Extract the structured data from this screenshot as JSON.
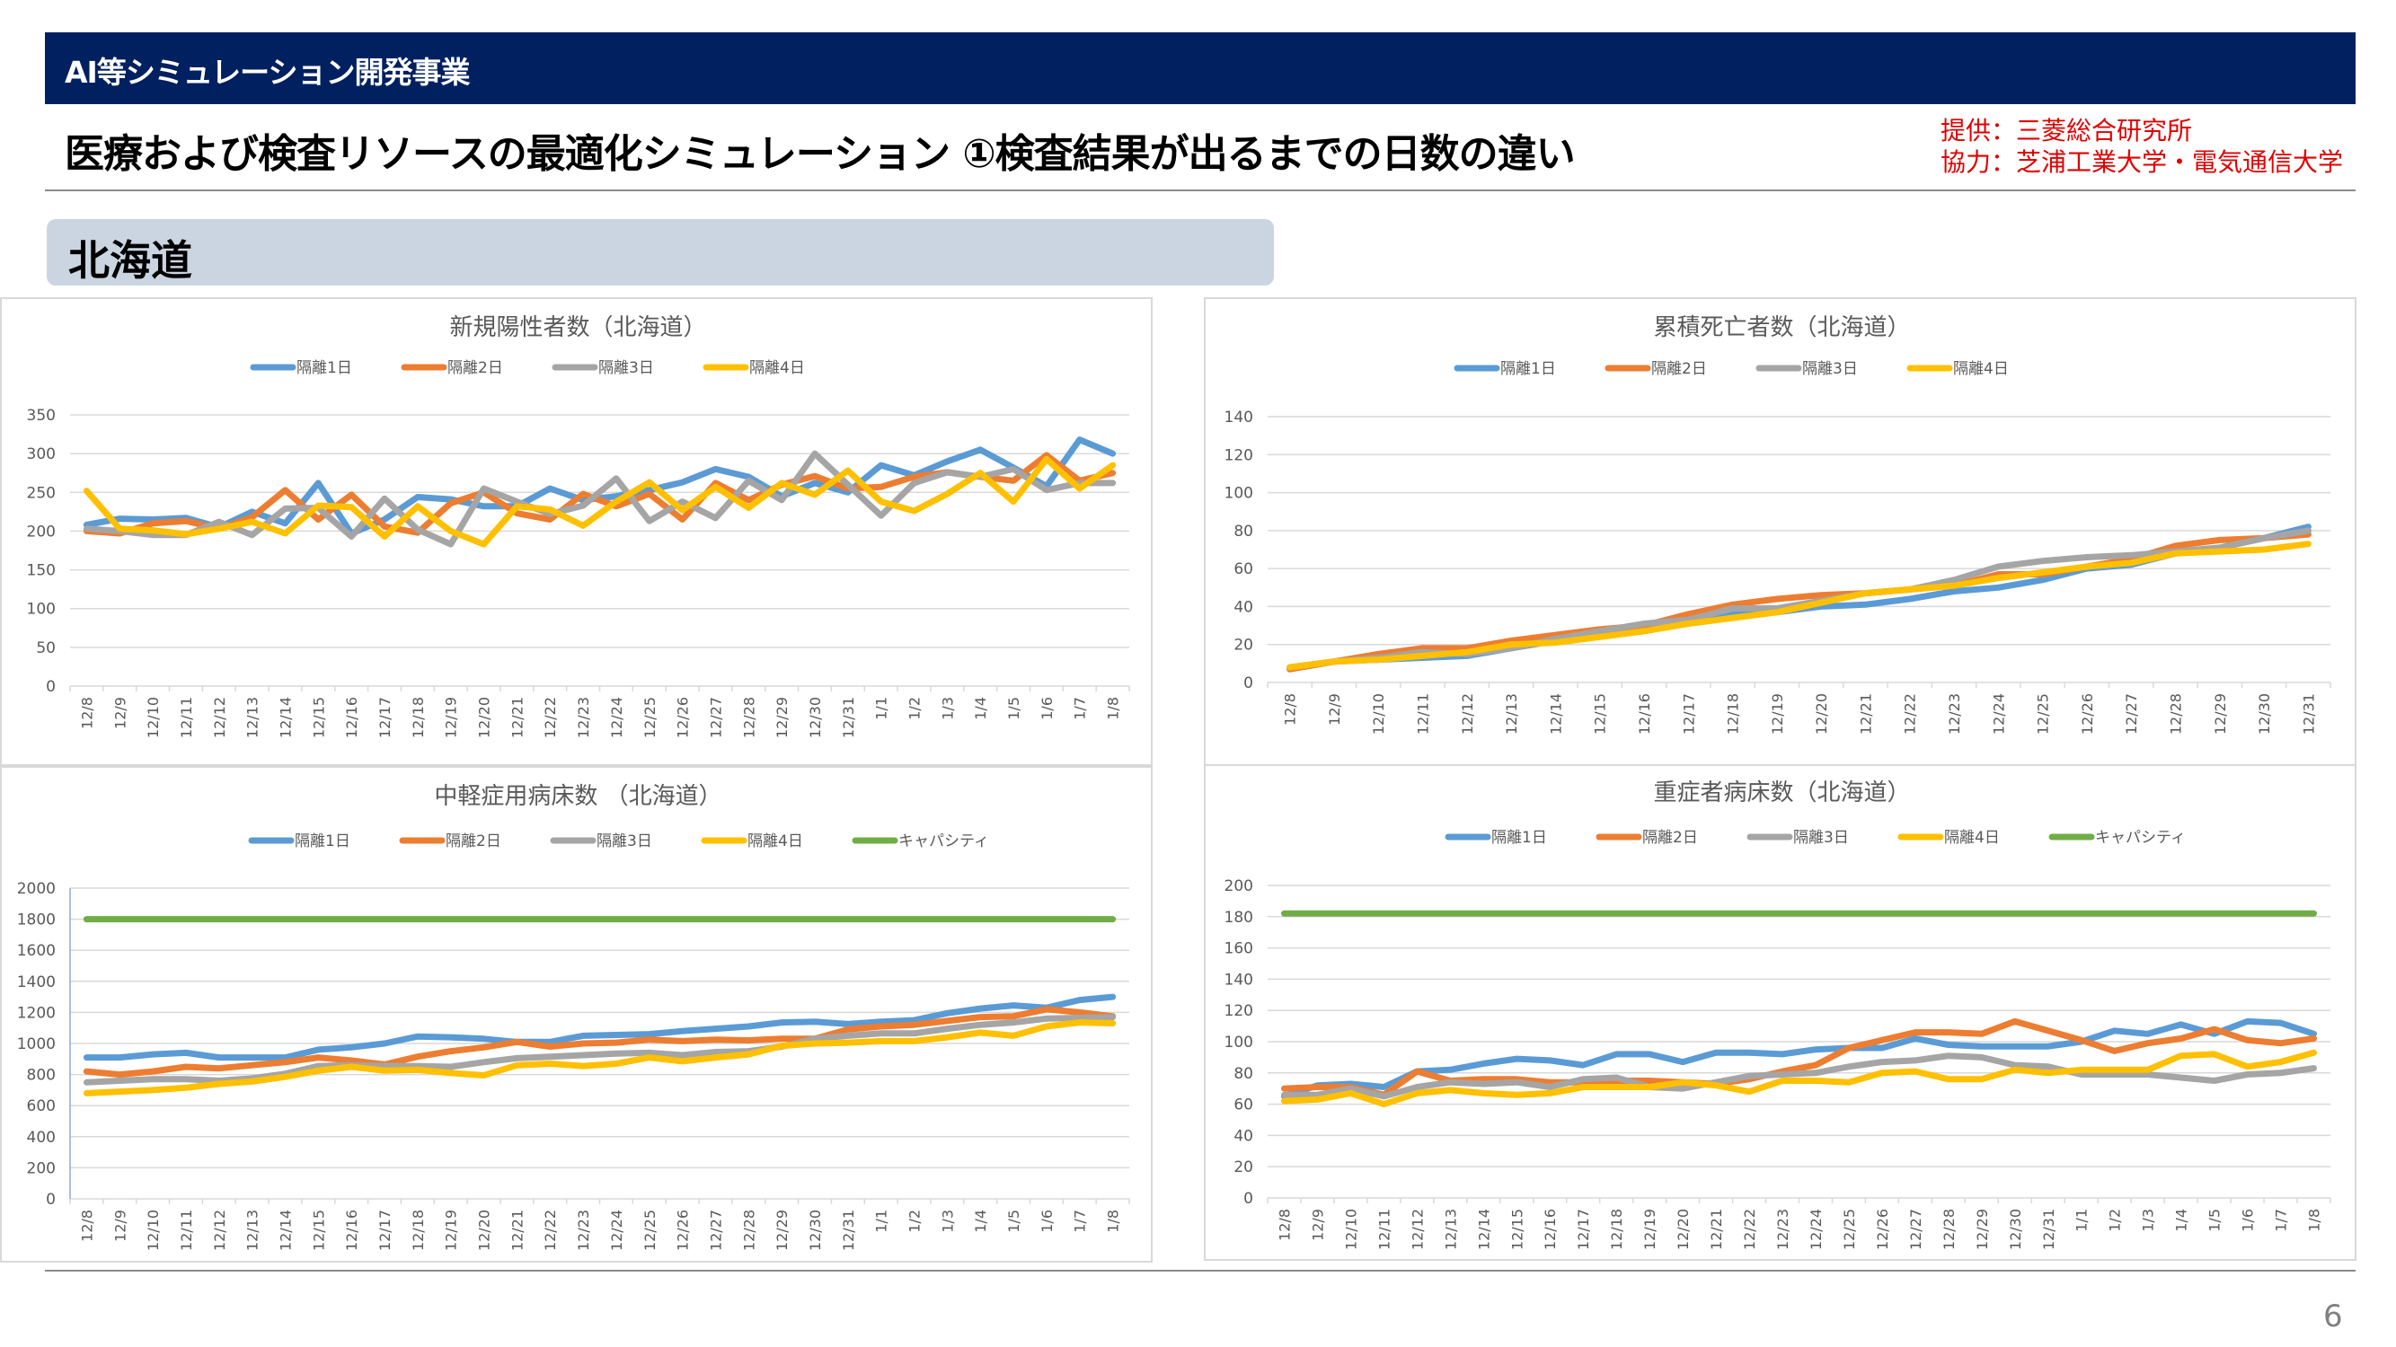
{
  "header": {
    "program": "AI等シミュレーション開発事業",
    "title": "医療および検査リソースの最適化シミュレーション ①検査結果が出るまでの日数の違い",
    "credit_provider": "提供：三菱総合研究所",
    "credit_cooperation": "協力：芝浦工業大学・電気通信大学"
  },
  "section": {
    "region": "北海道"
  },
  "footer": {
    "page_number": "6"
  },
  "colors": {
    "series_1": "#5b9bd5",
    "series_2": "#ed7d31",
    "series_3": "#a5a5a5",
    "series_4": "#ffc000",
    "capacity": "#70ad47",
    "header_bg": "#002060",
    "credit_text": "#e00000"
  },
  "chart_data": [
    {
      "id": "new-positives",
      "type": "line",
      "title": "新規陽性者数（北海道）",
      "xlabel": "",
      "ylabel": "",
      "ylim": [
        0,
        350
      ],
      "yticks": [
        0,
        50,
        100,
        150,
        200,
        250,
        300,
        350
      ],
      "grid": true,
      "legend": "top",
      "categories": [
        "12/8",
        "12/9",
        "12/10",
        "12/11",
        "12/12",
        "12/13",
        "12/14",
        "12/15",
        "12/16",
        "12/17",
        "12/18",
        "12/19",
        "12/20",
        "12/21",
        "12/22",
        "12/23",
        "12/24",
        "12/25",
        "12/26",
        "12/27",
        "12/28",
        "12/29",
        "12/30",
        "12/31",
        "1/1",
        "1/2",
        "1/3",
        "1/4",
        "1/5",
        "1/6",
        "1/7",
        "1/8"
      ],
      "series": [
        {
          "name": "隔離1日",
          "color": "#5b9bd5",
          "values": [
            208,
            216,
            215,
            217,
            205,
            225,
            210,
            262,
            197,
            215,
            244,
            241,
            232,
            232,
            255,
            240,
            245,
            253,
            263,
            280,
            270,
            245,
            262,
            250,
            285,
            272,
            290,
            305,
            282,
            258,
            318,
            300
          ]
        },
        {
          "name": "隔離2日",
          "color": "#ed7d31",
          "values": [
            200,
            197,
            210,
            213,
            203,
            218,
            253,
            215,
            247,
            206,
            198,
            236,
            250,
            223,
            215,
            248,
            232,
            248,
            215,
            262,
            240,
            260,
            271,
            255,
            257,
            270,
            276,
            270,
            265,
            298,
            265,
            275
          ]
        },
        {
          "name": "隔離3日",
          "color": "#a5a5a5",
          "values": [
            203,
            200,
            195,
            195,
            212,
            195,
            229,
            230,
            193,
            242,
            202,
            183,
            255,
            238,
            222,
            233,
            268,
            213,
            238,
            217,
            265,
            240,
            300,
            260,
            220,
            262,
            276,
            270,
            280,
            253,
            262,
            262
          ]
        },
        {
          "name": "隔離4日",
          "color": "#ffc000",
          "values": [
            252,
            203,
            201,
            196,
            203,
            212,
            197,
            233,
            231,
            193,
            232,
            200,
            183,
            232,
            228,
            207,
            238,
            263,
            227,
            257,
            230,
            262,
            247,
            278,
            238,
            226,
            248,
            275,
            238,
            293,
            255,
            285
          ]
        }
      ]
    },
    {
      "id": "cumulative-deaths",
      "type": "line",
      "title": "累積死亡者数（北海道）",
      "xlabel": "",
      "ylabel": "",
      "ylim": [
        0,
        140
      ],
      "yticks": [
        0,
        20,
        40,
        60,
        80,
        100,
        120,
        140
      ],
      "grid": true,
      "legend": "top",
      "categories": [
        "12/8",
        "12/9",
        "12/10",
        "12/11",
        "12/12",
        "12/13",
        "12/14",
        "12/15",
        "12/16",
        "12/17",
        "12/18",
        "12/19",
        "12/20",
        "12/21",
        "12/22",
        "12/23",
        "12/24",
        "12/25",
        "12/26",
        "12/27",
        "12/28",
        "12/29",
        "12/30",
        "12/31"
      ],
      "series": [
        {
          "name": "隔離1日",
          "color": "#5b9bd5",
          "values": [
            7,
            11,
            12,
            13,
            14,
            18,
            22,
            26,
            30,
            33,
            36,
            37,
            40,
            41,
            44,
            48,
            50,
            54,
            60,
            62,
            68,
            71,
            76,
            82
          ]
        },
        {
          "name": "隔離2日",
          "color": "#ed7d31",
          "values": [
            7,
            11,
            15,
            18,
            18,
            22,
            25,
            28,
            30,
            36,
            41,
            44,
            46,
            47,
            49,
            51,
            57,
            57,
            61,
            65,
            72,
            75,
            76,
            78
          ]
        },
        {
          "name": "隔離3日",
          "color": "#a5a5a5",
          "values": [
            8,
            11,
            13,
            16,
            15,
            18,
            23,
            27,
            31,
            33,
            39,
            39,
            43,
            47,
            49,
            54,
            61,
            64,
            66,
            67,
            69,
            71,
            76,
            80
          ]
        },
        {
          "name": "隔離4日",
          "color": "#ffc000",
          "values": [
            8,
            11,
            12,
            14,
            16,
            20,
            21,
            24,
            27,
            31,
            34,
            37,
            42,
            47,
            49,
            51,
            55,
            58,
            61,
            63,
            68,
            69,
            70,
            73
          ]
        }
      ]
    },
    {
      "id": "mild-beds",
      "type": "line",
      "title": "中軽症用病床数 （北海道）",
      "xlabel": "",
      "ylabel": "",
      "ylim": [
        0,
        2000
      ],
      "yticks": [
        0,
        200,
        400,
        600,
        800,
        1000,
        1200,
        1400,
        1600,
        1800,
        2000
      ],
      "grid": true,
      "legend": "top",
      "categories": [
        "12/8",
        "12/9",
        "12/10",
        "12/11",
        "12/12",
        "12/13",
        "12/14",
        "12/15",
        "12/16",
        "12/17",
        "12/18",
        "12/19",
        "12/20",
        "12/21",
        "12/22",
        "12/23",
        "12/24",
        "12/25",
        "12/26",
        "12/27",
        "12/28",
        "12/29",
        "12/30",
        "12/31",
        "1/1",
        "1/2",
        "1/3",
        "1/4",
        "1/5",
        "1/6",
        "1/7",
        "1/8"
      ],
      "series": [
        {
          "name": "隔離1日",
          "color": "#5b9bd5",
          "values": [
            910,
            910,
            930,
            940,
            910,
            910,
            910,
            960,
            975,
            1000,
            1045,
            1040,
            1030,
            1010,
            1010,
            1050,
            1055,
            1060,
            1080,
            1095,
            1110,
            1135,
            1140,
            1125,
            1140,
            1150,
            1195,
            1225,
            1245,
            1230,
            1280,
            1300
          ]
        },
        {
          "name": "隔離2日",
          "color": "#ed7d31",
          "values": [
            820,
            800,
            820,
            850,
            840,
            860,
            880,
            910,
            890,
            865,
            915,
            950,
            975,
            1010,
            980,
            1000,
            1005,
            1025,
            1015,
            1025,
            1020,
            1030,
            1030,
            1090,
            1110,
            1120,
            1145,
            1170,
            1175,
            1220,
            1200,
            1175
          ]
        },
        {
          "name": "隔離3日",
          "color": "#a5a5a5",
          "values": [
            750,
            760,
            770,
            770,
            760,
            775,
            805,
            855,
            860,
            855,
            855,
            850,
            880,
            905,
            915,
            925,
            935,
            940,
            925,
            945,
            950,
            980,
            1030,
            1050,
            1065,
            1065,
            1095,
            1120,
            1135,
            1160,
            1165,
            1170
          ]
        },
        {
          "name": "隔離4日",
          "color": "#ffc000",
          "values": [
            680,
            690,
            700,
            715,
            740,
            755,
            785,
            825,
            850,
            825,
            830,
            810,
            795,
            860,
            870,
            855,
            870,
            910,
            885,
            910,
            930,
            985,
            1000,
            1005,
            1015,
            1015,
            1040,
            1070,
            1050,
            1110,
            1135,
            1130
          ]
        },
        {
          "name": "キャパシティ",
          "color": "#70ad47",
          "values": [
            1800,
            1800,
            1800,
            1800,
            1800,
            1800,
            1800,
            1800,
            1800,
            1800,
            1800,
            1800,
            1800,
            1800,
            1800,
            1800,
            1800,
            1800,
            1800,
            1800,
            1800,
            1800,
            1800,
            1800,
            1800,
            1800,
            1800,
            1800,
            1800,
            1800,
            1800,
            1800
          ]
        }
      ]
    },
    {
      "id": "severe-beds",
      "type": "line",
      "title": "重症者病床数（北海道）",
      "xlabel": "",
      "ylabel": "",
      "ylim": [
        0,
        200
      ],
      "yticks": [
        0,
        20,
        40,
        60,
        80,
        100,
        120,
        140,
        160,
        180,
        200
      ],
      "grid": true,
      "legend": "top",
      "categories": [
        "12/8",
        "12/9",
        "12/10",
        "12/11",
        "12/12",
        "12/13",
        "12/14",
        "12/15",
        "12/16",
        "12/17",
        "12/18",
        "12/19",
        "12/20",
        "12/21",
        "12/22",
        "12/23",
        "12/24",
        "12/25",
        "12/26",
        "12/27",
        "12/28",
        "12/29",
        "12/30",
        "12/31",
        "1/1",
        "1/2",
        "1/3",
        "1/4",
        "1/5",
        "1/6",
        "1/7",
        "1/8"
      ],
      "series": [
        {
          "name": "隔離1日",
          "color": "#5b9bd5",
          "values": [
            65,
            72,
            73,
            71,
            81,
            82,
            86,
            89,
            88,
            85,
            92,
            92,
            87,
            93,
            93,
            92,
            95,
            96,
            96,
            102,
            98,
            97,
            97,
            97,
            100,
            107,
            105,
            111,
            105,
            113,
            112,
            105
          ]
        },
        {
          "name": "隔離2日",
          "color": "#ed7d31",
          "values": [
            70,
            71,
            71,
            66,
            81,
            75,
            76,
            76,
            74,
            74,
            75,
            75,
            74,
            73,
            76,
            81,
            85,
            96,
            101,
            106,
            106,
            105,
            113,
            107,
            101,
            94,
            99,
            102,
            108,
            101,
            99,
            102
          ]
        },
        {
          "name": "隔離3日",
          "color": "#a5a5a5",
          "values": [
            66,
            66,
            70,
            65,
            71,
            74,
            73,
            74,
            71,
            76,
            77,
            71,
            70,
            74,
            78,
            79,
            80,
            84,
            87,
            88,
            91,
            90,
            85,
            84,
            79,
            79,
            79,
            77,
            75,
            79,
            80,
            83
          ]
        },
        {
          "name": "隔離4日",
          "color": "#ffc000",
          "values": [
            62,
            63,
            67,
            60,
            67,
            69,
            67,
            66,
            67,
            71,
            71,
            71,
            74,
            72,
            68,
            75,
            75,
            74,
            80,
            81,
            76,
            76,
            82,
            80,
            82,
            82,
            82,
            91,
            92,
            84,
            87,
            93
          ]
        },
        {
          "name": "キャパシティ",
          "color": "#70ad47",
          "values": [
            182,
            182,
            182,
            182,
            182,
            182,
            182,
            182,
            182,
            182,
            182,
            182,
            182,
            182,
            182,
            182,
            182,
            182,
            182,
            182,
            182,
            182,
            182,
            182,
            182,
            182,
            182,
            182,
            182,
            182,
            182,
            182
          ]
        }
      ]
    }
  ]
}
